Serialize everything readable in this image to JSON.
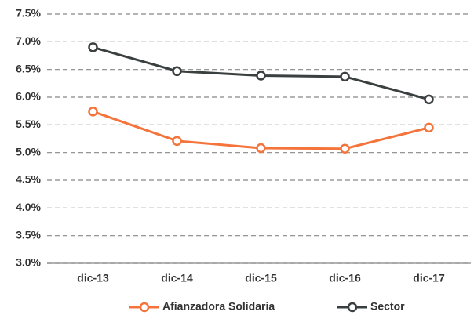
{
  "chart_data": {
    "type": "line",
    "categories": [
      "dic-13",
      "dic-14",
      "dic-15",
      "dic-16",
      "dic-17"
    ],
    "series": [
      {
        "name": "Afianzadora Solidaria",
        "color": "#f4743b",
        "values": [
          5.74,
          5.21,
          5.08,
          5.07,
          5.45
        ]
      },
      {
        "name": "Sector",
        "color": "#3a3f3f",
        "values": [
          6.9,
          6.47,
          6.39,
          6.37,
          5.96
        ]
      }
    ],
    "ylim": [
      3,
      7.5
    ],
    "yticks": [
      {
        "value": 3,
        "label": "3.0%"
      },
      {
        "value": 3.5,
        "label": "3.5%"
      },
      {
        "value": 4,
        "label": "4.0%"
      },
      {
        "value": 4.5,
        "label": "4.5%"
      },
      {
        "value": 5,
        "label": "5.0%"
      },
      {
        "value": 5.5,
        "label": "5.5%"
      },
      {
        "value": 6,
        "label": "6.0%"
      },
      {
        "value": 6.5,
        "label": "6.5%"
      },
      {
        "value": 7,
        "label": "7.0%"
      },
      {
        "value": 7.5,
        "label": "7.5%"
      }
    ],
    "grid": true
  }
}
